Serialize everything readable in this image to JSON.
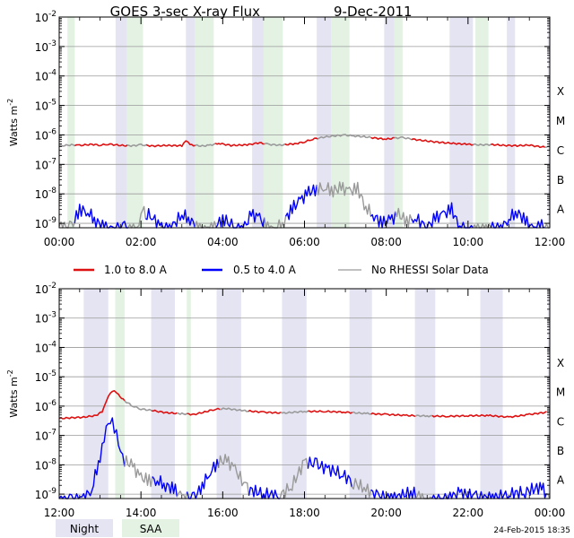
{
  "title": "GOES 3-sec X-ray Flux",
  "date": "9-Dec-2011",
  "ylabel_base": "Watts m",
  "ylabel_exp": "-2",
  "footer": "24-Feb-2015 18:35",
  "colors": {
    "long": "#dd1111",
    "short": "#0000ff",
    "norhessi": "#9a9a9a",
    "night": "#e4e4f2",
    "saa": "#e4f2e4",
    "grid": "#9a9a9a"
  },
  "legend": {
    "long": "1.0 to 8.0 A",
    "short": "0.5 to 4.0 A",
    "norhessi": "No RHESSI Solar Data",
    "night": "Night",
    "saa": "SAA"
  },
  "chart_data": [
    {
      "type": "line",
      "panel": "top",
      "xlim": [
        0,
        12
      ],
      "ylim_log10": [
        -9.15,
        -2
      ],
      "ytick_labels": [
        {
          "base": "10",
          "exp": "-2"
        },
        {
          "base": "10",
          "exp": "-3"
        },
        {
          "base": "10",
          "exp": "-4"
        },
        {
          "base": "10",
          "exp": "-5"
        },
        {
          "base": "10",
          "exp": "-6"
        },
        {
          "base": "10",
          "exp": "-7"
        },
        {
          "base": "10",
          "exp": "-8"
        },
        {
          "base": "10",
          "exp": "-9"
        }
      ],
      "xtick_labels": [
        "00:00",
        "02:00",
        "04:00",
        "06:00",
        "08:00",
        "10:00",
        "12:00"
      ],
      "flare_classes": [
        "X",
        "M",
        "C",
        "B",
        "A"
      ],
      "night_intervals": [
        [
          1.38,
          1.66
        ],
        [
          3.1,
          3.32
        ],
        [
          4.72,
          5.0
        ],
        [
          6.3,
          6.65
        ],
        [
          7.95,
          8.2
        ],
        [
          9.55,
          10.12
        ],
        [
          10.95,
          11.15
        ],
        [
          11.95,
          12
        ]
      ],
      "saa_intervals": [
        [
          0.2,
          0.38
        ],
        [
          1.66,
          2.05
        ],
        [
          3.32,
          3.78
        ],
        [
          5.0,
          5.47
        ],
        [
          6.65,
          7.1
        ],
        [
          8.2,
          8.4
        ],
        [
          10.18,
          10.5
        ]
      ],
      "norhessi_intervals": [
        [
          0,
          0.35
        ],
        [
          1.66,
          2.1
        ],
        [
          3.32,
          3.8
        ],
        [
          5.0,
          5.5
        ],
        [
          6.3,
          7.6
        ],
        [
          8.2,
          8.6
        ],
        [
          10.1,
          10.55
        ],
        [
          11.85,
          12
        ]
      ],
      "series": [
        {
          "name": "1.0 to 8.0 A",
          "key": "long",
          "x": [
            0,
            0.3,
            0.5,
            0.8,
            1.0,
            1.2,
            1.5,
            1.8,
            2.0,
            2.3,
            2.6,
            3.0,
            3.1,
            3.2,
            3.5,
            3.7,
            3.9,
            4.2,
            4.6,
            4.9,
            5.1,
            5.4,
            5.8,
            6.0,
            6.2,
            6.5,
            6.8,
            7.0,
            7.2,
            7.5,
            7.8,
            8.0,
            8.2,
            8.4,
            8.7,
            9.0,
            9.3,
            9.6,
            10.0,
            10.3,
            10.6,
            10.9,
            11.2,
            11.5,
            11.8,
            12.0
          ],
          "values": [
            4.2e-07,
            4.6e-07,
            4.4e-07,
            4.8e-07,
            4.5e-07,
            4.9e-07,
            4.4e-07,
            4.3e-07,
            4.6e-07,
            4.2e-07,
            4.4e-07,
            4.3e-07,
            6.5e-07,
            4.6e-07,
            4.2e-07,
            4.5e-07,
            5.2e-07,
            4.4e-07,
            4.6e-07,
            5.4e-07,
            4.8e-07,
            4.5e-07,
            5.1e-07,
            5.8e-07,
            7.2e-07,
            8.5e-07,
            9.5e-07,
            9.8e-07,
            9.2e-07,
            8.6e-07,
            7.6e-07,
            7.2e-07,
            7.8e-07,
            8.1e-07,
            7e-07,
            6.2e-07,
            5.6e-07,
            5.2e-07,
            4.8e-07,
            4.6e-07,
            4.7e-07,
            4.4e-07,
            4.3e-07,
            4.5e-07,
            3.9e-07,
            4e-07
          ]
        },
        {
          "name": "0.5 to 4.0 A",
          "key": "short",
          "x": [
            0,
            0.3,
            0.5,
            0.7,
            0.9,
            1.1,
            1.3,
            1.6,
            1.9,
            2.0,
            2.15,
            2.3,
            2.5,
            2.7,
            3.0,
            3.2,
            3.4,
            3.6,
            3.8,
            4.0,
            4.3,
            4.5,
            4.7,
            4.9,
            5.1,
            5.3,
            5.5,
            5.7,
            5.9,
            6.1,
            6.3,
            6.5,
            6.7,
            6.9,
            7.1,
            7.3,
            7.5,
            7.7,
            7.9,
            8.1,
            8.3,
            8.5,
            8.7,
            9.0,
            9.2,
            9.4,
            9.6,
            9.8,
            10.0,
            10.2,
            10.4,
            10.6,
            10.8,
            11.0,
            11.2,
            11.4,
            11.6,
            11.8,
            12.0
          ],
          "values": [
            8e-10,
            7e-10,
            3e-09,
            2.5e-09,
            1.2e-09,
            7e-10,
            6e-10,
            7e-10,
            6e-10,
            3e-09,
            2.2e-09,
            1.5e-09,
            7e-10,
            6e-10,
            2e-09,
            1.4e-09,
            6e-10,
            6e-10,
            7e-10,
            1.5e-09,
            7e-10,
            6e-10,
            2e-09,
            1.5e-09,
            7e-10,
            6e-10,
            1.2e-09,
            3.2e-09,
            6e-09,
            1.1e-08,
            1.5e-08,
            1.7e-08,
            1.3e-08,
            1.6e-08,
            1.2e-08,
            1.5e-08,
            3.5e-09,
            1.8e-09,
            1e-09,
            1.3e-09,
            2e-09,
            1.2e-09,
            1.6e-09,
            7e-10,
            1.5e-09,
            2e-09,
            3e-09,
            7e-10,
            6e-10,
            6e-10,
            6e-10,
            7e-10,
            6e-10,
            1.5e-09,
            2.5e-09,
            1.2e-09,
            6e-10,
            8e-10,
            6e-10
          ]
        }
      ]
    },
    {
      "type": "line",
      "panel": "bottom",
      "xlim": [
        12,
        24
      ],
      "ylim_log10": [
        -9.15,
        -2
      ],
      "ytick_labels": [
        {
          "base": "10",
          "exp": "-2"
        },
        {
          "base": "10",
          "exp": "-3"
        },
        {
          "base": "10",
          "exp": "-4"
        },
        {
          "base": "10",
          "exp": "-5"
        },
        {
          "base": "10",
          "exp": "-6"
        },
        {
          "base": "10",
          "exp": "-7"
        },
        {
          "base": "10",
          "exp": "-8"
        },
        {
          "base": "10",
          "exp": "-9"
        }
      ],
      "xtick_labels": [
        "12:00",
        "14:00",
        "16:00",
        "18:00",
        "20:00",
        "22:00",
        "00:00"
      ],
      "flare_classes": [
        "X",
        "M",
        "C",
        "B",
        "A"
      ],
      "night_intervals": [
        [
          12.6,
          13.2
        ],
        [
          14.25,
          14.83
        ],
        [
          15.85,
          16.45
        ],
        [
          17.45,
          18.05
        ],
        [
          19.1,
          19.65
        ],
        [
          20.7,
          21.2
        ],
        [
          22.3,
          22.85
        ],
        [
          23.95,
          24
        ]
      ],
      "saa_intervals": [
        [
          13.37,
          13.6
        ],
        [
          15.12,
          15.22
        ]
      ],
      "norhessi_intervals": [
        [
          13.6,
          14.25
        ],
        [
          14.85,
          15.1
        ],
        [
          15.9,
          16.6
        ],
        [
          17.4,
          18.05
        ],
        [
          19.15,
          19.6
        ],
        [
          20.7,
          21.1
        ],
        [
          23.9,
          24
        ]
      ],
      "series": [
        {
          "name": "1.0 to 8.0 A",
          "key": "long",
          "x": [
            12.0,
            12.3,
            12.6,
            12.9,
            13.05,
            13.15,
            13.25,
            13.35,
            13.45,
            13.6,
            13.8,
            14.0,
            14.3,
            14.6,
            15.0,
            15.3,
            15.6,
            15.8,
            16.1,
            16.5,
            17.0,
            17.5,
            18.0,
            18.5,
            19.0,
            19.5,
            20.0,
            20.5,
            21.0,
            21.5,
            22.0,
            22.5,
            23.0,
            23.5,
            24.0
          ],
          "values": [
            3.8e-07,
            4e-07,
            4.2e-07,
            4.8e-07,
            6.5e-07,
            1.5e-06,
            2.8e-06,
            3.2e-06,
            2.4e-06,
            1.5e-06,
            1e-06,
            8e-07,
            7e-07,
            6e-07,
            5.5e-07,
            5.2e-07,
            6.5e-07,
            7.8e-07,
            8.2e-07,
            7e-07,
            6.2e-07,
            5.8e-07,
            6.6e-07,
            6.6e-07,
            6.2e-07,
            5.6e-07,
            5.2e-07,
            4.8e-07,
            4.6e-07,
            4.5e-07,
            4.7e-07,
            4.8e-07,
            4.2e-07,
            5.2e-07,
            6.4e-07
          ]
        },
        {
          "name": "0.5 to 4.0 A",
          "key": "short",
          "x": [
            12.0,
            12.3,
            12.6,
            12.8,
            13.0,
            13.1,
            13.2,
            13.3,
            13.4,
            13.5,
            13.6,
            13.8,
            14.0,
            14.2,
            14.4,
            14.6,
            14.8,
            15.0,
            15.3,
            15.5,
            15.7,
            15.9,
            16.1,
            16.3,
            16.6,
            17.0,
            17.4,
            17.7,
            18.0,
            18.3,
            18.6,
            18.9,
            19.2,
            19.5,
            19.8,
            20.2,
            20.6,
            21.0,
            21.4,
            21.8,
            22.2,
            22.6,
            23.0,
            23.4,
            23.8,
            24.0
          ],
          "values": [
            6e-10,
            6e-10,
            7e-10,
            1.5e-09,
            2e-08,
            8e-08,
            2e-07,
            2.4e-07,
            1.3e-07,
            4e-08,
            1.4e-08,
            9e-09,
            3.5e-09,
            3e-09,
            3e-09,
            2e-09,
            1.5e-09,
            8e-10,
            7e-10,
            2e-09,
            6e-09,
            1.3e-08,
            1.4e-08,
            7e-09,
            1.5e-09,
            1e-09,
            9e-10,
            2e-09,
            1.3e-08,
            1e-08,
            7e-09,
            5e-09,
            2.5e-09,
            1.5e-09,
            8e-10,
            7e-10,
            1.2e-09,
            6e-10,
            6e-10,
            1.1e-09,
            8e-10,
            7e-10,
            1e-09,
            1.2e-09,
            1.8e-09,
            6e-10
          ]
        }
      ]
    }
  ]
}
